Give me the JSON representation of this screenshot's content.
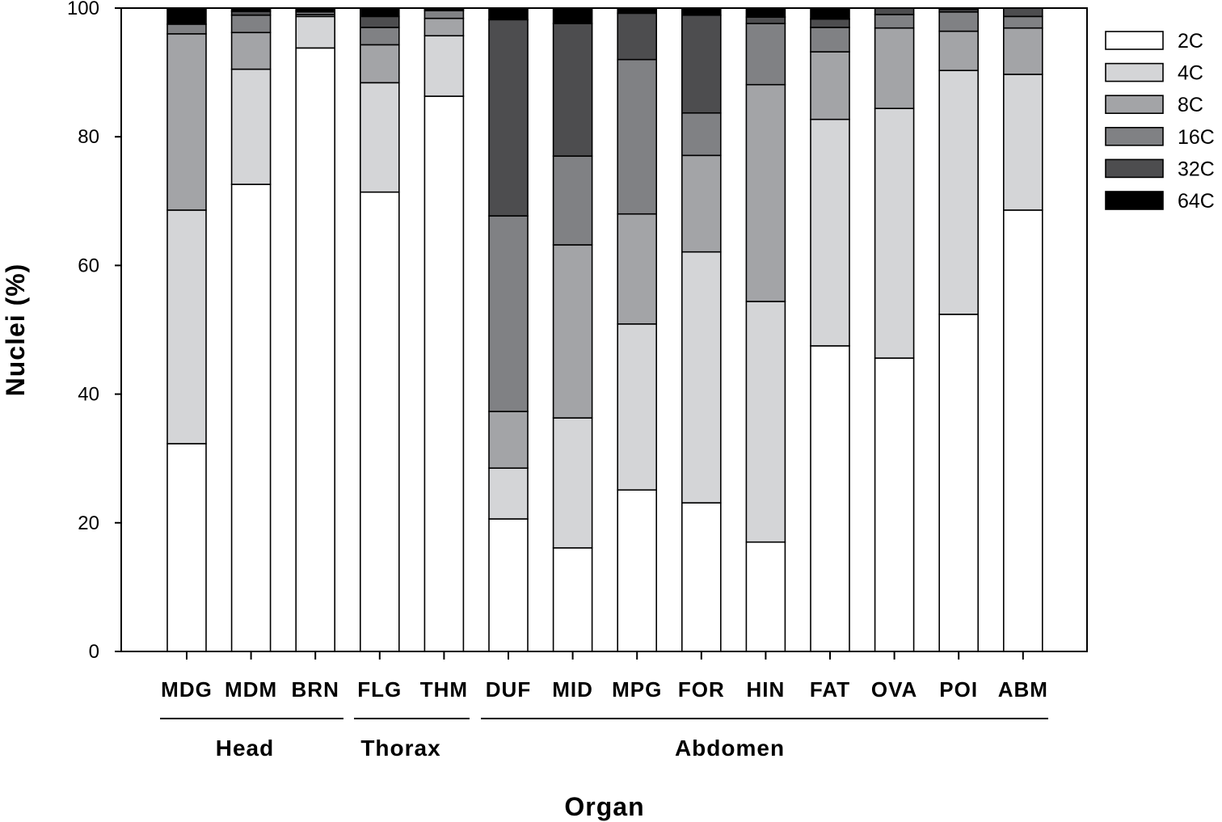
{
  "chart_data": {
    "type": "bar",
    "stacked": true,
    "title": "",
    "xlabel": "Organ",
    "ylabel": "Nuclei (%)",
    "ylim": [
      0,
      100
    ],
    "yticks": [
      0,
      20,
      40,
      60,
      80,
      100
    ],
    "grid": false,
    "legend_position": "right",
    "categories": [
      "MDG",
      "MDM",
      "BRN",
      "FLG",
      "THM",
      "DUF",
      "MID",
      "MPG",
      "FOR",
      "HIN",
      "FAT",
      "OVA",
      "POI",
      "ABM"
    ],
    "groups": [
      {
        "label": "Head",
        "categories": [
          "MDG",
          "MDM",
          "BRN"
        ]
      },
      {
        "label": "Thorax",
        "categories": [
          "FLG",
          "THM"
        ]
      },
      {
        "label": "Abdomen",
        "categories": [
          "DUF",
          "MID",
          "MPG",
          "FOR",
          "HIN",
          "FAT",
          "OVA",
          "POI",
          "ABM"
        ]
      }
    ],
    "series": [
      {
        "name": "2C",
        "color": "#ffffff",
        "values": [
          32.3,
          72.6,
          93.8,
          71.4,
          86.3,
          20.6,
          16.1,
          25.1,
          23.1,
          17.0,
          47.5,
          45.6,
          52.4,
          68.6
        ]
      },
      {
        "name": "4C",
        "color": "#d4d5d7",
        "values": [
          36.3,
          17.9,
          4.9,
          17.0,
          9.4,
          7.9,
          20.2,
          25.8,
          39.0,
          37.4,
          35.2,
          38.8,
          37.9,
          21.1
        ]
      },
      {
        "name": "8C",
        "color": "#a3a4a7",
        "values": [
          27.4,
          5.7,
          0.3,
          5.9,
          2.7,
          8.8,
          26.9,
          17.1,
          15.0,
          33.7,
          10.5,
          12.5,
          6.1,
          7.2
        ]
      },
      {
        "name": "16C",
        "color": "#808184",
        "values": [
          1.5,
          2.7,
          0.4,
          2.7,
          1.2,
          30.4,
          13.8,
          24.0,
          6.6,
          9.5,
          3.8,
          2.1,
          3.0,
          1.8
        ]
      },
      {
        "name": "32C",
        "color": "#4d4d4f",
        "values": [
          0.0,
          0.6,
          0.2,
          1.7,
          0.2,
          30.5,
          20.6,
          7.2,
          15.2,
          1.0,
          1.3,
          1.0,
          0.4,
          1.3
        ]
      },
      {
        "name": "64C",
        "color": "#000000",
        "values": [
          2.5,
          0.5,
          0.4,
          1.3,
          0.2,
          1.8,
          2.4,
          0.8,
          1.1,
          1.4,
          1.7,
          0.0,
          0.2,
          0.0
        ]
      }
    ]
  }
}
